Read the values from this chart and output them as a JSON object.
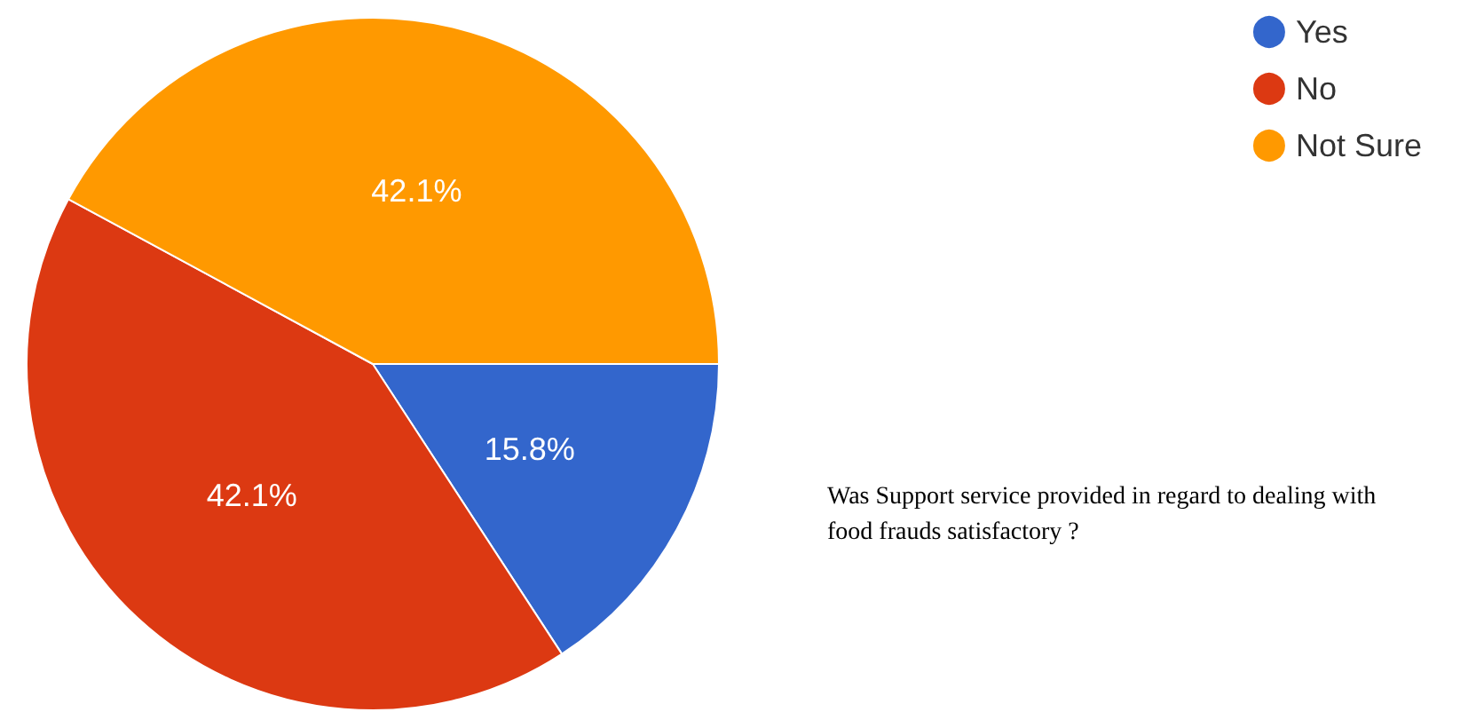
{
  "chart_data": {
    "type": "pie",
    "categories": [
      "Yes",
      "No",
      "Not Sure"
    ],
    "values": [
      15.8,
      42.1,
      42.1
    ],
    "colors": [
      "#3366cc",
      "#dc3912",
      "#ff9900"
    ],
    "value_labels": [
      "15.8%",
      "42.1%",
      "42.1%"
    ],
    "legend": "top right",
    "annotations": [
      "Was Support service provided in regard to dealing with food frauds satisfactory ?"
    ]
  }
}
